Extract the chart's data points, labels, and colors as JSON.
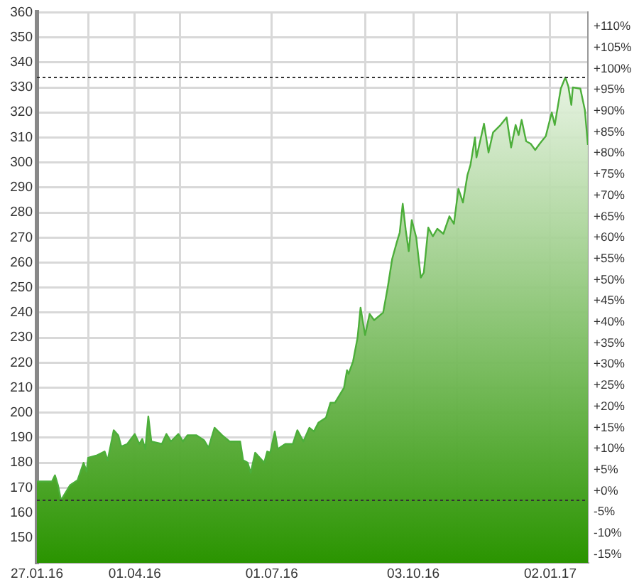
{
  "chart_data": {
    "type": "area",
    "x": [
      "2016-01-27",
      "2016-02-06",
      "2016-02-08",
      "2016-02-10",
      "2016-02-12",
      "2016-02-15",
      "2016-02-18",
      "2016-02-23",
      "2016-02-27",
      "2016-02-29",
      "2016-03-01",
      "2016-03-07",
      "2016-03-12",
      "2016-03-14",
      "2016-03-18",
      "2016-03-21",
      "2016-03-23",
      "2016-03-27",
      "2016-04-01",
      "2016-04-04",
      "2016-04-06",
      "2016-04-08",
      "2016-04-10",
      "2016-04-12",
      "2016-04-19",
      "2016-04-22",
      "2016-04-25",
      "2016-04-30",
      "2016-05-03",
      "2016-05-06",
      "2016-05-12",
      "2016-05-17",
      "2016-05-20",
      "2016-05-24",
      "2016-05-29",
      "2016-06-03",
      "2016-06-10",
      "2016-06-12",
      "2016-06-15",
      "2016-06-17",
      "2016-06-20",
      "2016-06-23",
      "2016-06-26",
      "2016-06-28",
      "2016-06-30",
      "2016-07-03",
      "2016-07-05",
      "2016-07-10",
      "2016-07-15",
      "2016-07-18",
      "2016-07-22",
      "2016-07-26",
      "2016-07-29",
      "2016-08-01",
      "2016-08-06",
      "2016-08-09",
      "2016-08-12",
      "2016-08-15",
      "2016-08-18",
      "2016-08-20",
      "2016-08-21",
      "2016-08-24",
      "2016-08-27",
      "2016-08-29",
      "2016-09-01",
      "2016-09-04",
      "2016-09-07",
      "2016-09-11",
      "2016-09-13",
      "2016-09-16",
      "2016-09-19",
      "2016-09-22",
      "2016-09-24",
      "2016-09-26",
      "2016-09-28",
      "2016-09-30",
      "2016-10-02",
      "2016-10-05",
      "2016-10-08",
      "2016-10-10",
      "2016-10-13",
      "2016-10-16",
      "2016-10-19",
      "2016-10-23",
      "2016-10-27",
      "2016-10-30",
      "2016-11-02",
      "2016-11-05",
      "2016-11-08",
      "2016-11-10",
      "2016-11-13",
      "2016-11-14",
      "2016-11-19",
      "2016-11-22",
      "2016-11-25",
      "2016-11-30",
      "2016-12-04",
      "2016-12-07",
      "2016-12-10",
      "2016-12-12",
      "2016-12-14",
      "2016-12-17",
      "2016-12-20",
      "2016-12-23",
      "2016-12-26",
      "2016-12-30",
      "2017-01-03",
      "2017-01-05",
      "2017-01-09",
      "2017-01-12",
      "2017-01-14",
      "2017-01-16",
      "2017-01-17",
      "2017-01-22",
      "2017-01-25",
      "2017-01-27"
    ],
    "series": [
      {
        "color": "#4cae3a",
        "values": [
          172.5,
          172.5,
          175,
          171,
          165,
          168,
          171,
          173,
          180,
          176.5,
          182,
          183,
          184.5,
          181,
          193,
          191,
          186.5,
          187.5,
          191.5,
          187.5,
          189.5,
          185.5,
          198.5,
          188.5,
          187.5,
          191.5,
          188.5,
          191.5,
          188.5,
          191,
          191,
          189,
          186,
          194,
          191,
          188.5,
          188.5,
          181,
          180,
          176,
          184,
          182,
          180,
          184.5,
          184,
          192.5,
          185.5,
          187.5,
          187.5,
          193,
          188.5,
          194,
          192.5,
          196,
          198,
          204,
          204,
          207,
          210,
          217,
          215.5,
          220.5,
          230,
          242,
          231,
          239.5,
          237,
          239,
          240,
          250,
          261.5,
          268,
          272,
          283.5,
          273,
          264.5,
          277,
          270,
          254,
          256,
          274,
          270.5,
          273.5,
          271.5,
          278.5,
          275.5,
          289.5,
          284,
          295,
          299,
          310,
          302,
          315.5,
          304,
          312,
          315,
          318,
          306,
          315,
          311,
          317,
          308.5,
          307.5,
          305,
          307.5,
          310.5,
          320,
          315,
          329.5,
          334,
          330.5,
          323,
          330,
          329.5,
          321,
          307
        ]
      }
    ],
    "xlim": [
      "2016-01-27",
      "2017-01-27"
    ],
    "xticks": [
      {
        "value": "2016-01-27",
        "label": "27.01.16"
      },
      {
        "value": "2016-03-01",
        "label": null
      },
      {
        "value": "2016-04-01",
        "label": "01.04.16"
      },
      {
        "value": "2016-05-01",
        "label": null
      },
      {
        "value": "2016-07-01",
        "label": "01.07.16"
      },
      {
        "value": "2016-09-01",
        "label": null
      },
      {
        "value": "2016-10-03",
        "label": "03.10.16"
      },
      {
        "value": "2016-11-01",
        "label": null
      },
      {
        "value": "2017-01-02",
        "label": "02.01.17"
      }
    ],
    "ylim": [
      140,
      360
    ],
    "yticks": [
      150,
      160,
      170,
      180,
      190,
      200,
      210,
      220,
      230,
      240,
      250,
      260,
      270,
      280,
      290,
      300,
      310,
      320,
      330,
      340,
      350,
      360
    ],
    "y2lim": [
      -17,
      113.4
    ],
    "y2ticks": [
      {
        "value": -15,
        "label": "-15%"
      },
      {
        "value": -10,
        "label": "-10%"
      },
      {
        "value": -5,
        "label": "-5%"
      },
      {
        "value": 0,
        "label": "+0%"
      },
      {
        "value": 5,
        "label": "+5%"
      },
      {
        "value": 10,
        "label": "+10%"
      },
      {
        "value": 15,
        "label": "+15%"
      },
      {
        "value": 20,
        "label": "+20%"
      },
      {
        "value": 25,
        "label": "+25%"
      },
      {
        "value": 30,
        "label": "+30%"
      },
      {
        "value": 35,
        "label": "+35%"
      },
      {
        "value": 40,
        "label": "+40%"
      },
      {
        "value": 45,
        "label": "+45%"
      },
      {
        "value": 50,
        "label": "+50%"
      },
      {
        "value": 55,
        "label": "+55%"
      },
      {
        "value": 60,
        "label": "+60%"
      },
      {
        "value": 65,
        "label": "+65%"
      },
      {
        "value": 70,
        "label": "+70%"
      },
      {
        "value": 75,
        "label": "+75%"
      },
      {
        "value": 80,
        "label": "+80%"
      },
      {
        "value": 85,
        "label": "+85%"
      },
      {
        "value": 90,
        "label": "+90%"
      },
      {
        "value": 95,
        "label": "+95%"
      },
      {
        "value": 100,
        "label": "+100%"
      },
      {
        "value": 105,
        "label": "+105%"
      },
      {
        "value": 110,
        "label": "+110%"
      }
    ],
    "ref_lines": [
      {
        "axis": "y",
        "value": 334,
        "color": "#333333",
        "line_style": "dotted"
      },
      {
        "axis": "y",
        "value": 165,
        "color": "#333333",
        "line_style": "dotted"
      }
    ],
    "grid": true,
    "legend": false
  }
}
